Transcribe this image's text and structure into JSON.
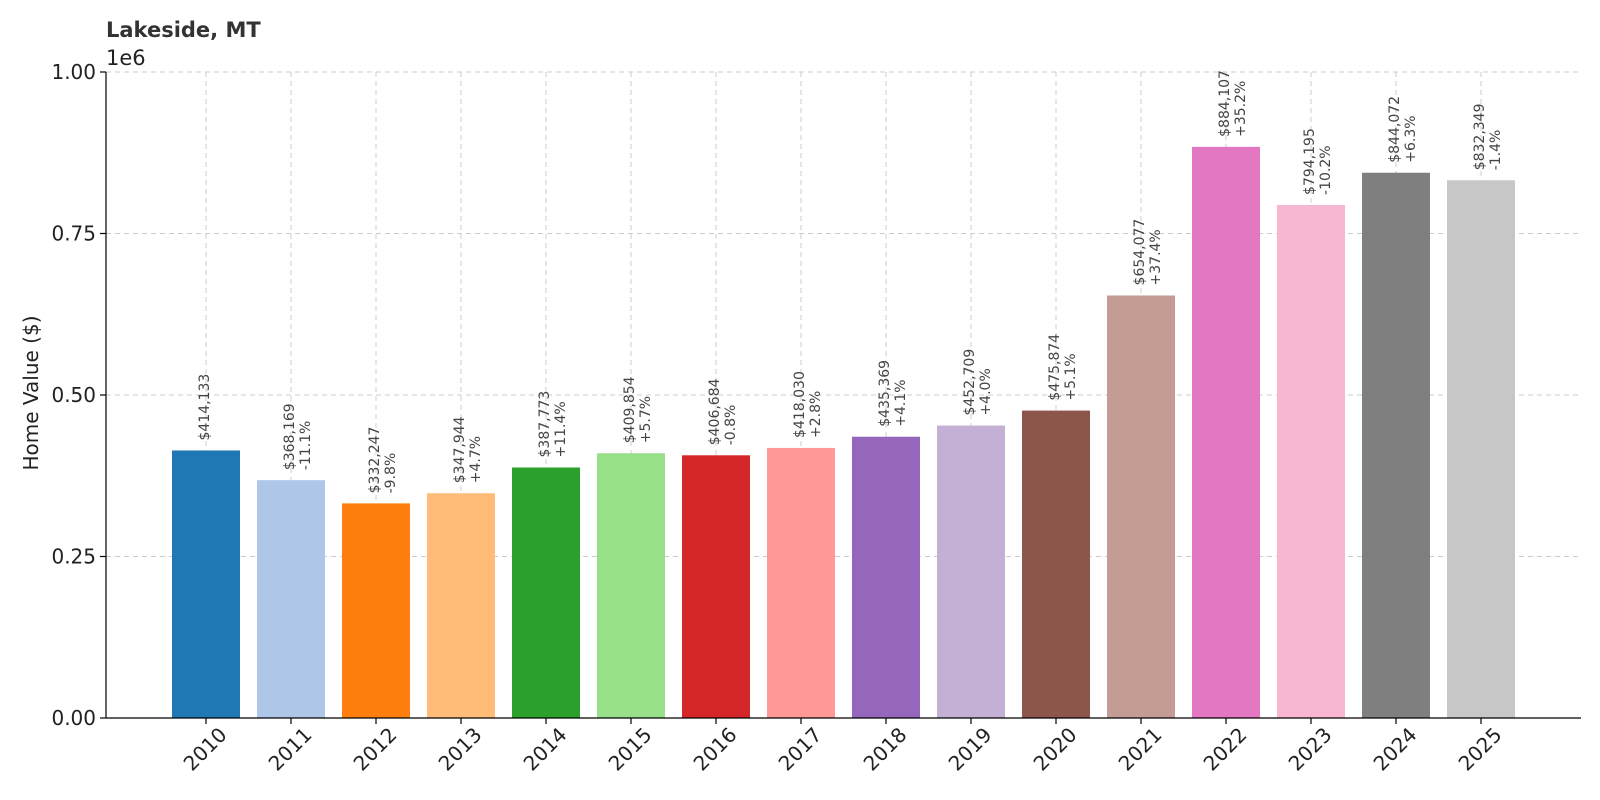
{
  "chart_data": {
    "type": "bar",
    "title": "Lakeside, MT",
    "ylabel": "Home Value ($)",
    "xlabel": "",
    "y_offset_label": "1e6",
    "ylim": [
      0,
      1000000
    ],
    "yticks": [
      0,
      250000,
      500000,
      750000,
      1000000
    ],
    "ytick_labels": [
      "0.00",
      "0.25",
      "0.50",
      "0.75",
      "1.00"
    ],
    "grid": true,
    "categories": [
      "2010",
      "2011",
      "2012",
      "2013",
      "2014",
      "2015",
      "2016",
      "2017",
      "2018",
      "2019",
      "2020",
      "2021",
      "2022",
      "2023",
      "2024",
      "2025"
    ],
    "values": [
      414133,
      368169,
      332247,
      347944,
      387773,
      409854,
      406684,
      418030,
      435369,
      452709,
      475874,
      654077,
      884107,
      794195,
      844072,
      832349
    ],
    "value_labels": [
      "$414,133",
      "$368,169",
      "$332,247",
      "$347,944",
      "$387,773",
      "$409,854",
      "$406,684",
      "$418,030",
      "$435,369",
      "$452,709",
      "$475,874",
      "$654,077",
      "$884,107",
      "$794,195",
      "$844,072",
      "$832,349"
    ],
    "change_labels": [
      "",
      "-11.1%",
      "-9.8%",
      "+4.7%",
      "+11.4%",
      "+5.7%",
      "-0.8%",
      "+2.8%",
      "+4.1%",
      "+4.0%",
      "+5.1%",
      "+37.4%",
      "+35.2%",
      "-10.2%",
      "+6.3%",
      "-1.4%"
    ],
    "colors": [
      "#1f77b4",
      "#aec7e8",
      "#ff7f0e",
      "#ffbb78",
      "#2ca02c",
      "#98df8a",
      "#d62728",
      "#ff9896",
      "#9467bd",
      "#c5b0d5",
      "#8c564b",
      "#c49c94",
      "#e377c2",
      "#f7b6d2",
      "#7f7f7f",
      "#c7c7c7"
    ]
  }
}
